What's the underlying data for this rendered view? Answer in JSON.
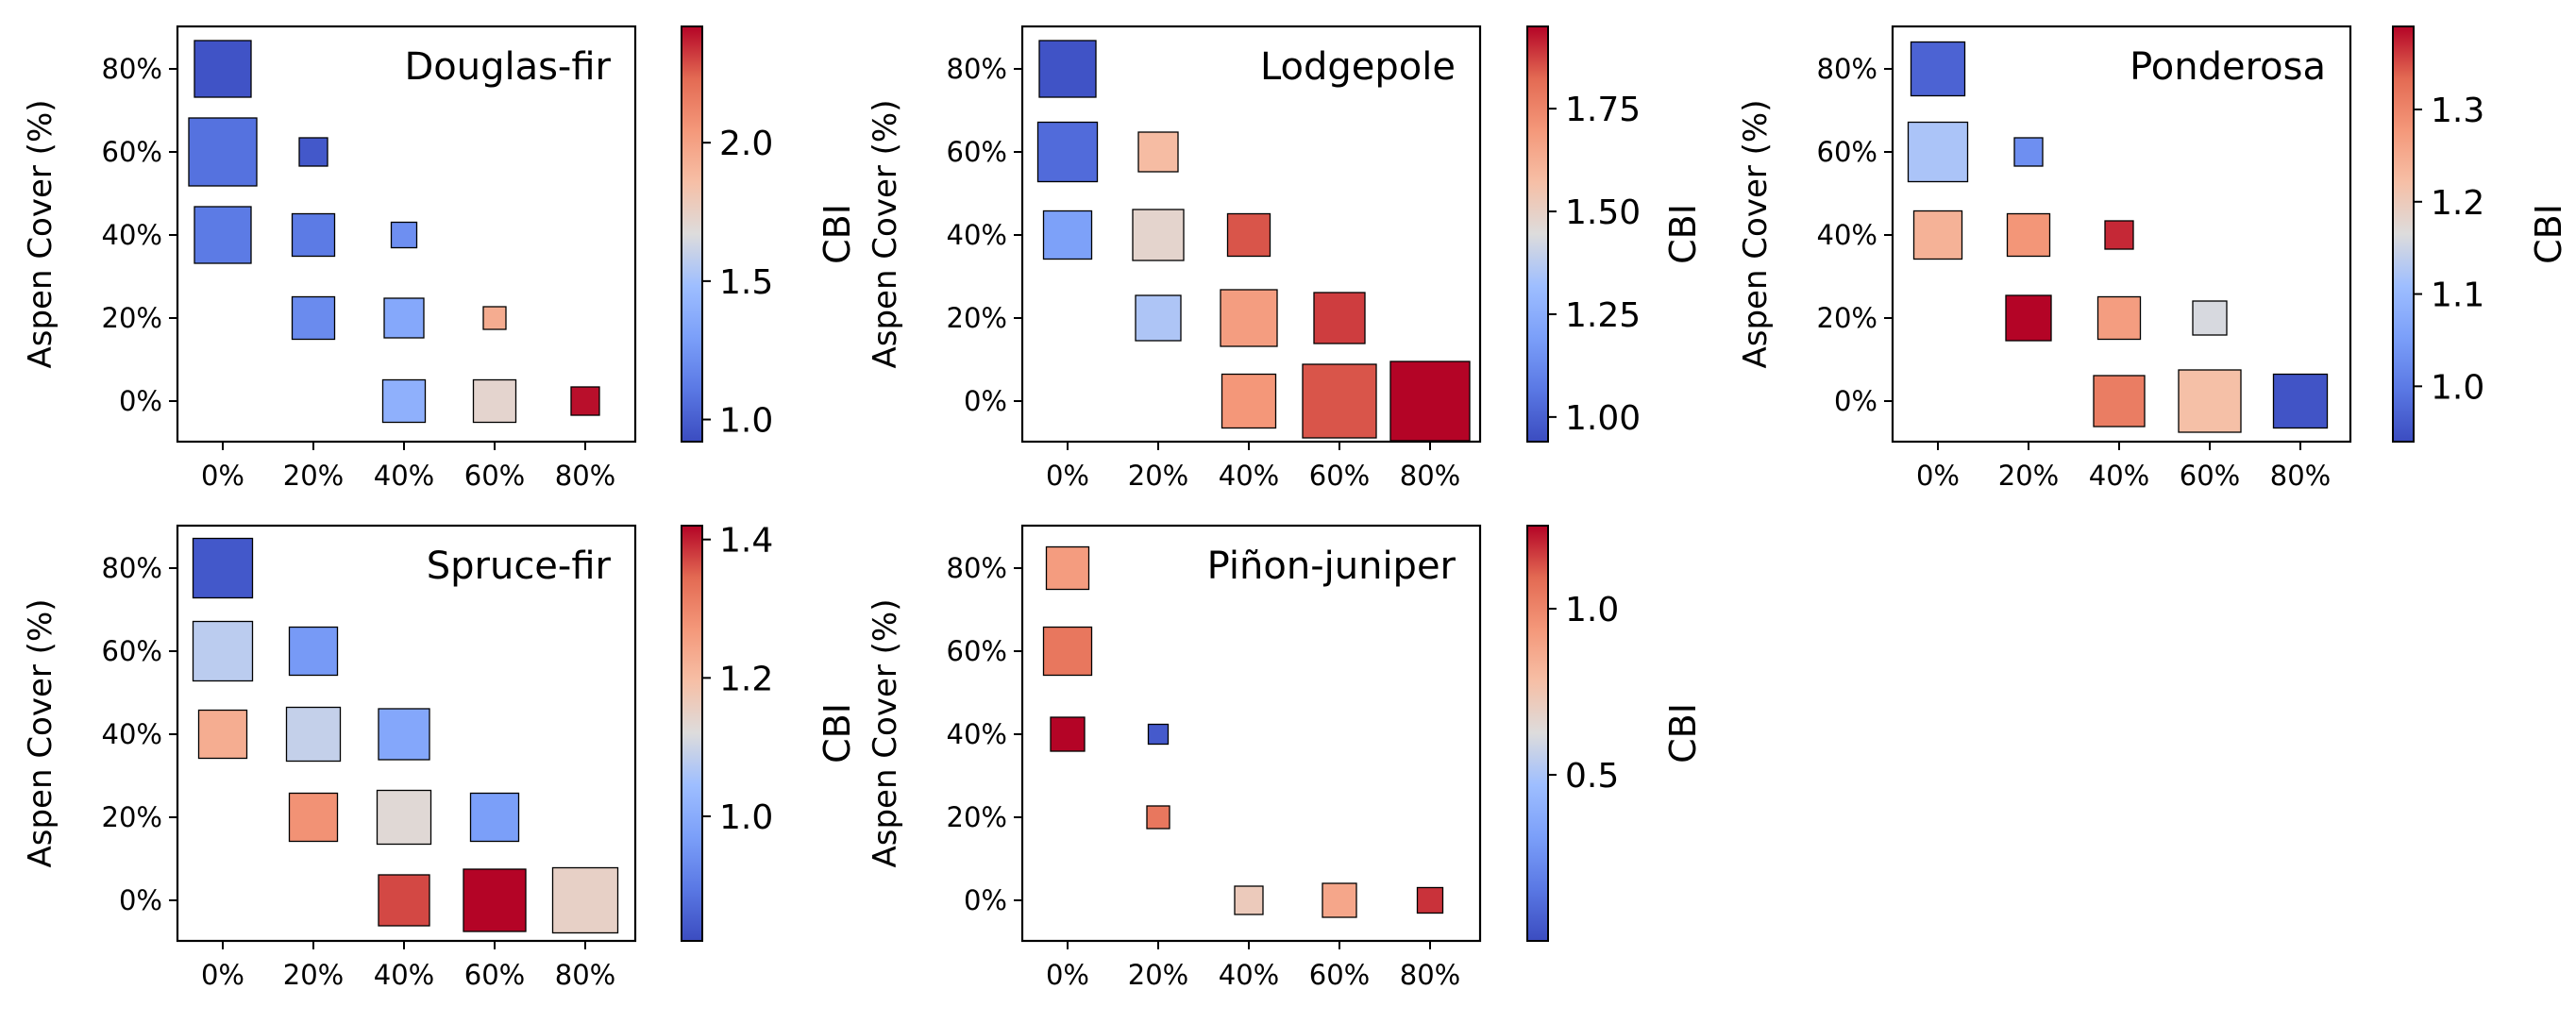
{
  "chart_data": [
    {
      "type": "heatmap",
      "title": "Douglas-fir",
      "ylabel": "Aspen Cover (%)",
      "colorbar_label": "CBI",
      "x_ticks": [
        "0%",
        "20%",
        "40%",
        "60%",
        "80%"
      ],
      "y_ticks": [
        "0%",
        "20%",
        "40%",
        "60%",
        "80%"
      ],
      "colorbar_ticks": [
        "1.0",
        "1.5",
        "2.0"
      ],
      "colorbar_range": [
        0.92,
        2.42
      ],
      "colorbar_tick_values": [
        1.0,
        1.5,
        2.0
      ],
      "cells": [
        {
          "x": 0,
          "y": 80,
          "cbi": 0.95,
          "size": 1.0
        },
        {
          "x": 0,
          "y": 60,
          "cbi": 1.08,
          "size": 1.2
        },
        {
          "x": 20,
          "y": 60,
          "cbi": 0.97,
          "size": 0.5
        },
        {
          "x": 0,
          "y": 40,
          "cbi": 1.12,
          "size": 1.0
        },
        {
          "x": 20,
          "y": 40,
          "cbi": 1.12,
          "size": 0.75
        },
        {
          "x": 40,
          "y": 40,
          "cbi": 1.22,
          "size": 0.45
        },
        {
          "x": 20,
          "y": 20,
          "cbi": 1.2,
          "size": 0.75
        },
        {
          "x": 40,
          "y": 20,
          "cbi": 1.35,
          "size": 0.7
        },
        {
          "x": 60,
          "y": 20,
          "cbi": 1.95,
          "size": 0.4
        },
        {
          "x": 40,
          "y": 0,
          "cbi": 1.4,
          "size": 0.75
        },
        {
          "x": 60,
          "y": 0,
          "cbi": 1.72,
          "size": 0.75
        },
        {
          "x": 80,
          "y": 0,
          "cbi": 2.4,
          "size": 0.5
        }
      ]
    },
    {
      "type": "heatmap",
      "title": "Lodgepole",
      "ylabel": "Aspen Cover (%)",
      "colorbar_label": "CBI",
      "x_ticks": [
        "0%",
        "20%",
        "40%",
        "60%",
        "80%"
      ],
      "y_ticks": [
        "0%",
        "20%",
        "40%",
        "60%",
        "80%"
      ],
      "colorbar_ticks": [
        "1.00",
        "1.25",
        "1.50",
        "1.75"
      ],
      "colorbar_range": [
        0.94,
        1.95
      ],
      "colorbar_tick_values": [
        1.0,
        1.25,
        1.5,
        1.75
      ],
      "cells": [
        {
          "x": 0,
          "y": 80,
          "cbi": 0.96,
          "size": 1.0
        },
        {
          "x": 0,
          "y": 60,
          "cbi": 1.03,
          "size": 1.05
        },
        {
          "x": 20,
          "y": 60,
          "cbi": 1.58,
          "size": 0.7
        },
        {
          "x": 0,
          "y": 40,
          "cbi": 1.2,
          "size": 0.85
        },
        {
          "x": 20,
          "y": 40,
          "cbi": 1.48,
          "size": 0.9
        },
        {
          "x": 40,
          "y": 40,
          "cbi": 1.85,
          "size": 0.75
        },
        {
          "x": 20,
          "y": 20,
          "cbi": 1.35,
          "size": 0.8
        },
        {
          "x": 40,
          "y": 20,
          "cbi": 1.68,
          "size": 1.0
        },
        {
          "x": 60,
          "y": 20,
          "cbi": 1.88,
          "size": 0.9
        },
        {
          "x": 40,
          "y": 0,
          "cbi": 1.7,
          "size": 0.95
        },
        {
          "x": 60,
          "y": 0,
          "cbi": 1.85,
          "size": 1.3
        },
        {
          "x": 80,
          "y": 0,
          "cbi": 1.95,
          "size": 1.4
        }
      ]
    },
    {
      "type": "heatmap",
      "title": "Ponderosa",
      "ylabel": "Aspen Cover (%)",
      "colorbar_label": "CBI",
      "x_ticks": [
        "0%",
        "20%",
        "40%",
        "60%",
        "80%"
      ],
      "y_ticks": [
        "0%",
        "20%",
        "40%",
        "60%",
        "80%"
      ],
      "colorbar_ticks": [
        "1.0",
        "1.1",
        "1.2",
        "1.3"
      ],
      "colorbar_range": [
        0.94,
        1.39
      ],
      "colorbar_tick_values": [
        1.0,
        1.1,
        1.2,
        1.3
      ],
      "cells": [
        {
          "x": 0,
          "y": 80,
          "cbi": 0.97,
          "size": 0.95
        },
        {
          "x": 0,
          "y": 60,
          "cbi": 1.12,
          "size": 1.05
        },
        {
          "x": 20,
          "y": 60,
          "cbi": 1.03,
          "size": 0.5
        },
        {
          "x": 0,
          "y": 40,
          "cbi": 1.24,
          "size": 0.85
        },
        {
          "x": 20,
          "y": 40,
          "cbi": 1.28,
          "size": 0.75
        },
        {
          "x": 40,
          "y": 40,
          "cbi": 1.37,
          "size": 0.5
        },
        {
          "x": 20,
          "y": 20,
          "cbi": 1.39,
          "size": 0.8
        },
        {
          "x": 40,
          "y": 20,
          "cbi": 1.27,
          "size": 0.75
        },
        {
          "x": 60,
          "y": 20,
          "cbi": 1.16,
          "size": 0.6
        },
        {
          "x": 40,
          "y": 0,
          "cbi": 1.31,
          "size": 0.9
        },
        {
          "x": 60,
          "y": 0,
          "cbi": 1.22,
          "size": 1.1
        },
        {
          "x": 80,
          "y": 0,
          "cbi": 0.95,
          "size": 0.95
        }
      ]
    },
    {
      "type": "heatmap",
      "title": "Spruce-fir",
      "ylabel": "Aspen Cover (%)",
      "colorbar_label": "CBI",
      "x_ticks": [
        "0%",
        "20%",
        "40%",
        "60%",
        "80%"
      ],
      "y_ticks": [
        "0%",
        "20%",
        "40%",
        "60%",
        "80%"
      ],
      "colorbar_ticks": [
        "1.0",
        "1.2",
        "1.4"
      ],
      "colorbar_range": [
        0.82,
        1.42
      ],
      "colorbar_tick_values": [
        1.0,
        1.2,
        1.4
      ],
      "cells": [
        {
          "x": 0,
          "y": 80,
          "cbi": 0.84,
          "size": 1.05
        },
        {
          "x": 0,
          "y": 60,
          "cbi": 1.08,
          "size": 1.05
        },
        {
          "x": 20,
          "y": 60,
          "cbi": 0.96,
          "size": 0.85
        },
        {
          "x": 0,
          "y": 40,
          "cbi": 1.23,
          "size": 0.85
        },
        {
          "x": 20,
          "y": 40,
          "cbi": 1.09,
          "size": 0.95
        },
        {
          "x": 40,
          "y": 40,
          "cbi": 0.99,
          "size": 0.9
        },
        {
          "x": 20,
          "y": 20,
          "cbi": 1.28,
          "size": 0.85
        },
        {
          "x": 40,
          "y": 20,
          "cbi": 1.13,
          "size": 0.95
        },
        {
          "x": 60,
          "y": 20,
          "cbi": 0.97,
          "size": 0.85
        },
        {
          "x": 40,
          "y": 0,
          "cbi": 1.37,
          "size": 0.9
        },
        {
          "x": 60,
          "y": 0,
          "cbi": 1.42,
          "size": 1.1
        },
        {
          "x": 80,
          "y": 0,
          "cbi": 1.15,
          "size": 1.15
        }
      ]
    },
    {
      "type": "heatmap",
      "title": "Piñon-juniper",
      "ylabel": "Aspen Cover (%)",
      "colorbar_label": "CBI",
      "x_ticks": [
        "0%",
        "20%",
        "40%",
        "60%",
        "80%"
      ],
      "y_ticks": [
        "0%",
        "20%",
        "40%",
        "60%",
        "80%"
      ],
      "colorbar_ticks": [
        "0.5",
        "1.0"
      ],
      "colorbar_range": [
        0.0,
        1.25
      ],
      "colorbar_tick_values": [
        0.5,
        1.0
      ],
      "cells": [
        {
          "x": 0,
          "y": 80,
          "cbi": 0.92,
          "size": 0.75
        },
        {
          "x": 0,
          "y": 60,
          "cbi": 1.05,
          "size": 0.85
        },
        {
          "x": 0,
          "y": 40,
          "cbi": 1.25,
          "size": 0.6
        },
        {
          "x": 20,
          "y": 40,
          "cbi": 0.05,
          "size": 0.35
        },
        {
          "x": 20,
          "y": 20,
          "cbi": 1.05,
          "size": 0.4
        },
        {
          "x": 40,
          "y": 0,
          "cbi": 0.72,
          "size": 0.5
        },
        {
          "x": 60,
          "y": 0,
          "cbi": 0.88,
          "size": 0.6
        },
        {
          "x": 80,
          "y": 0,
          "cbi": 1.18,
          "size": 0.45
        }
      ]
    }
  ]
}
